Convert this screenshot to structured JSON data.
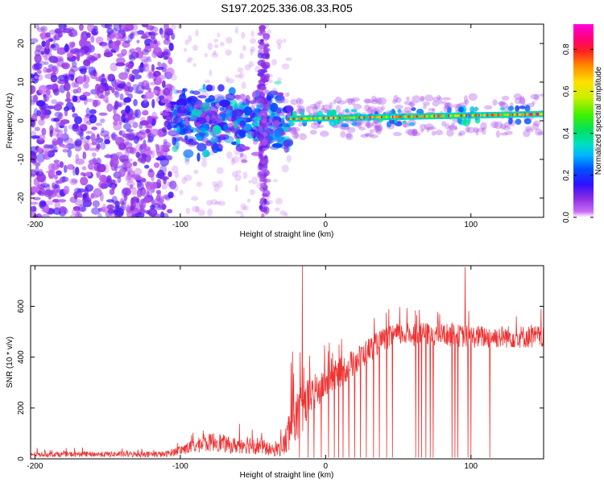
{
  "chart_data": [
    {
      "type": "heatmap",
      "title": "S197.2025.336.08.33.R05",
      "xlabel": "Height of straight line (km)",
      "ylabel": "Frequency (Hz)",
      "xlim": [
        -203,
        150
      ],
      "ylim": [
        -25,
        25
      ],
      "x_ticks": [
        {
          "v": -200,
          "label": "-200"
        },
        {
          "v": -100,
          "label": "-100"
        },
        {
          "v": 0,
          "label": "0"
        },
        {
          "v": 100,
          "label": "100"
        }
      ],
      "y_ticks": [
        {
          "v": -20,
          "label": "-20"
        },
        {
          "v": -10,
          "label": "-10"
        },
        {
          "v": 0,
          "label": "0"
        },
        {
          "v": 10,
          "label": "10"
        },
        {
          "v": 20,
          "label": "20"
        }
      ],
      "colorbar": {
        "label": "Normalized spectral amplitude",
        "range": [
          0,
          0.92
        ],
        "ticks": [
          {
            "v": 0,
            "label": "0.0"
          },
          {
            "v": 0.2,
            "label": "0.2"
          },
          {
            "v": 0.4,
            "label": "0.4"
          },
          {
            "v": 0.6,
            "label": "0.6"
          },
          {
            "v": 0.8,
            "label": "0.8"
          }
        ]
      },
      "features": [
        {
          "name": "broadband noise",
          "x_range": [
            -203,
            -105
          ],
          "freq_range": [
            -25,
            25
          ],
          "amplitude": 0.08
        },
        {
          "name": "scattered blobs",
          "x_range": [
            -105,
            -25
          ],
          "freq_range": [
            -8,
            8
          ],
          "amplitude": 0.2
        },
        {
          "name": "vertical streak",
          "x_range": [
            -45,
            -40
          ],
          "freq_range": [
            -25,
            25
          ],
          "amplitude": 0.1
        },
        {
          "name": "tone line",
          "x_range": [
            -25,
            150
          ],
          "freq": 0.5,
          "freq_slope_per_km": 0.007,
          "amplitude": 0.75
        }
      ]
    },
    {
      "type": "line",
      "xlabel": "Height of straight line (km)",
      "ylabel": "SNR (10 * v/v)",
      "xlim": [
        -203,
        150
      ],
      "ylim": [
        0,
        760
      ],
      "x_ticks": [
        {
          "v": -200,
          "label": "-200"
        },
        {
          "v": -100,
          "label": "-100"
        },
        {
          "v": 0,
          "label": "0"
        },
        {
          "v": 100,
          "label": "100"
        }
      ],
      "y_ticks": [
        {
          "v": 0,
          "label": "0"
        },
        {
          "v": 200,
          "label": "200"
        },
        {
          "v": 400,
          "label": "400"
        },
        {
          "v": 600,
          "label": "600"
        }
      ],
      "color": "#ee3333",
      "series": [
        {
          "name": "SNR envelope",
          "x": [
            -203,
            -110,
            -100,
            -90,
            -75,
            -65,
            -55,
            -45,
            -35,
            -28,
            -25,
            -22,
            -20,
            -15,
            -10,
            -5,
            0,
            10,
            20,
            30,
            40,
            50,
            60,
            80,
            100,
            120,
            150
          ],
          "mean": [
            18,
            18,
            35,
            50,
            70,
            50,
            60,
            50,
            30,
            60,
            110,
            200,
            150,
            200,
            250,
            270,
            300,
            340,
            380,
            430,
            470,
            490,
            490,
            490,
            480,
            480,
            480
          ],
          "noise": [
            10,
            12,
            20,
            28,
            40,
            30,
            40,
            35,
            20,
            50,
            100,
            140,
            120,
            90,
            80,
            70,
            65,
            60,
            55,
            50,
            45,
            45,
            45,
            45,
            45,
            45,
            45
          ]
        }
      ],
      "spikes": [
        {
          "x": -16,
          "y": 760
        },
        {
          "x": 96,
          "y": 755
        }
      ],
      "dropouts_x": [
        -18,
        -12,
        -8,
        -3,
        2,
        6,
        9,
        12,
        16,
        20,
        24,
        28,
        33,
        37,
        42,
        46,
        62,
        64,
        66,
        69,
        72,
        74,
        87,
        89,
        91,
        98,
        100,
        113
      ]
    }
  ]
}
